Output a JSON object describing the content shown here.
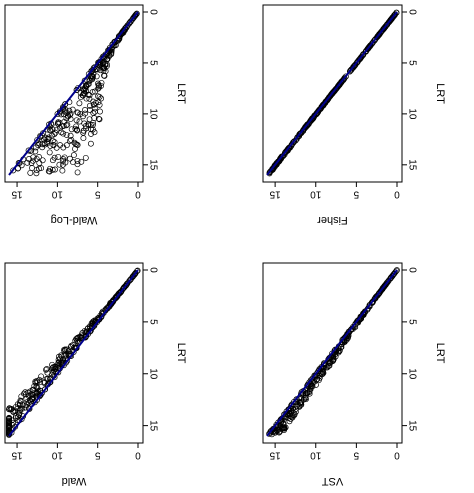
{
  "chart_data": [
    {
      "type": "scatter",
      "position": "top-left",
      "xlabel": "LRT",
      "ylabel": "Wald-Log",
      "xlim": [
        0,
        16
      ],
      "ylim": [
        0,
        16
      ],
      "x_ticks": [
        "0",
        "5",
        "10",
        "15"
      ],
      "y_ticks": [
        "0",
        "5",
        "10",
        "15"
      ],
      "rotation": "figure rotated 90 degrees clockwise",
      "reference_line": "y = x",
      "pattern": "points at or below the y = x line, spreading down to about 0.45x at large LRT",
      "colors": {
        "points": "#000000",
        "reference_line": "#00008b"
      }
    },
    {
      "type": "scatter",
      "position": "top-right",
      "xlabel": "LRT",
      "ylabel": "Fisher",
      "xlim": [
        0,
        16
      ],
      "ylim": [
        0,
        16
      ],
      "x_ticks": [
        "0",
        "5",
        "10",
        "15"
      ],
      "y_ticks": [
        "0",
        "5",
        "10",
        "15"
      ],
      "rotation": "figure rotated 90 degrees clockwise",
      "reference_line": "y = x",
      "pattern": "points tightly on the y = x line",
      "colors": {
        "points": "#000000",
        "reference_line": "#00008b"
      }
    },
    {
      "type": "scatter",
      "position": "bottom-left",
      "xlabel": "LRT",
      "ylabel": "Wald",
      "xlim": [
        0,
        16
      ],
      "ylim": [
        0,
        16
      ],
      "x_ticks": [
        "0",
        "5",
        "10",
        "15"
      ],
      "y_ticks": [
        "0",
        "5",
        "10",
        "15"
      ],
      "rotation": "figure rotated 90 degrees clockwise",
      "reference_line": "y = x",
      "pattern": "points at or above the y = x line, up to about 1.2x at large LRT",
      "colors": {
        "points": "#000000",
        "reference_line": "#00008b"
      }
    },
    {
      "type": "scatter",
      "position": "bottom-right",
      "xlabel": "LRT",
      "ylabel": "VST",
      "xlim": [
        0,
        16
      ],
      "ylim": [
        0,
        16
      ],
      "x_ticks": [
        "0",
        "5",
        "10",
        "15"
      ],
      "y_ticks": [
        "0",
        "5",
        "10",
        "15"
      ],
      "rotation": "figure rotated 90 degrees clockwise",
      "reference_line": "y = x",
      "pattern": "points slightly below the y = x line, down to about 0.9x at large LRT",
      "colors": {
        "points": "#000000",
        "reference_line": "#00008b"
      }
    }
  ]
}
